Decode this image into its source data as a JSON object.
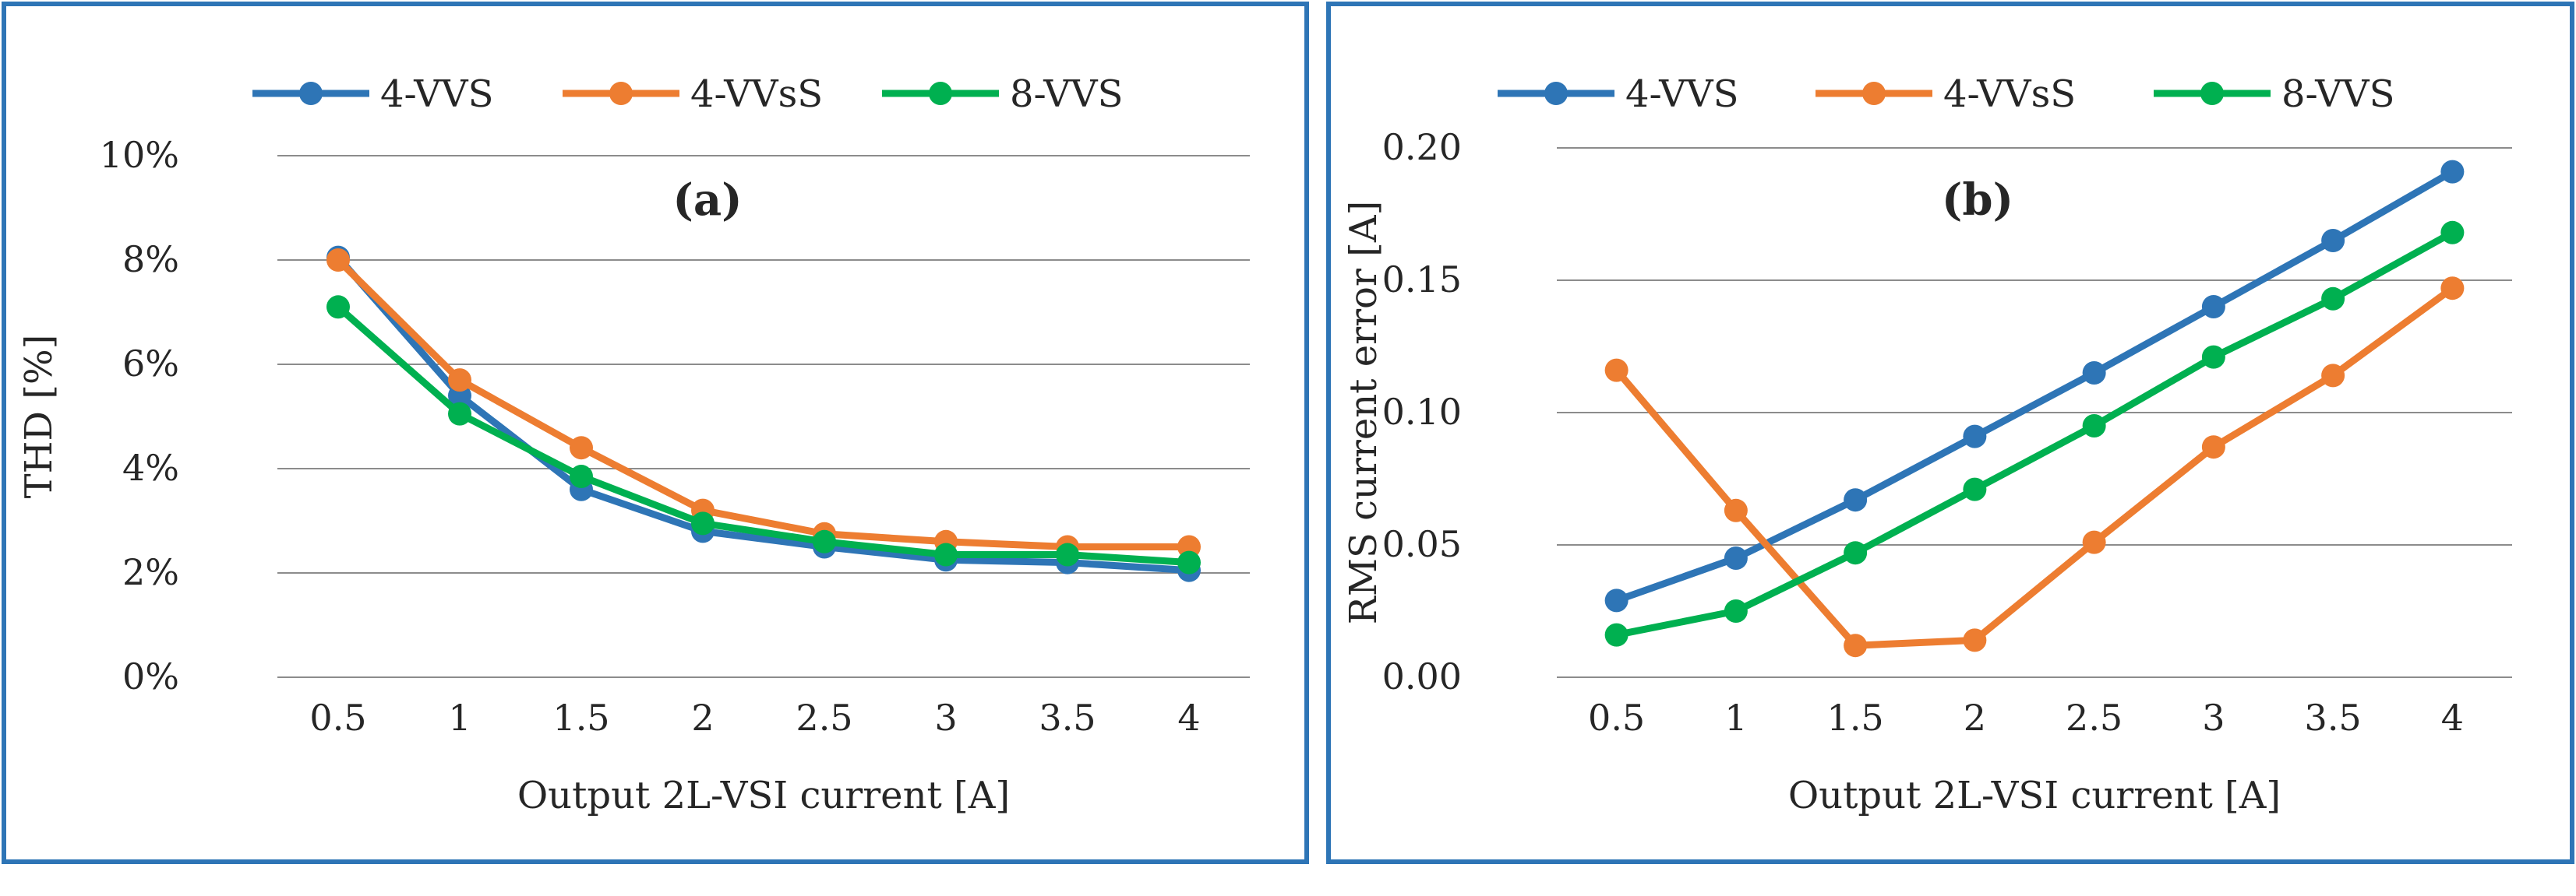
{
  "colors": {
    "series_1": "#2e75b6",
    "series_2": "#ed7d31",
    "series_3": "#00b050",
    "grid": "#8c8c8c",
    "frame": "#2e75b6"
  },
  "chart_data": [
    {
      "type": "line",
      "title": "(a)",
      "xlabel": "Output 2L-VSI current [A]",
      "ylabel": "THD [%]",
      "categories": [
        "0.5",
        "1",
        "1.5",
        "2",
        "2.5",
        "3",
        "3.5",
        "4"
      ],
      "ylim": [
        0,
        10
      ],
      "yticks": [
        0,
        2,
        4,
        6,
        8,
        10
      ],
      "ytick_labels": [
        "0%",
        "2%",
        "4%",
        "6%",
        "8%",
        "10%"
      ],
      "legend_position": "top",
      "series": [
        {
          "name": "4-VVS",
          "values": [
            8.05,
            5.4,
            3.6,
            2.8,
            2.5,
            2.25,
            2.2,
            2.05
          ]
        },
        {
          "name": "4-VVsS",
          "values": [
            8.0,
            5.7,
            4.4,
            3.2,
            2.75,
            2.6,
            2.5,
            2.5
          ]
        },
        {
          "name": "8-VVS",
          "values": [
            7.1,
            5.05,
            3.85,
            2.95,
            2.6,
            2.35,
            2.35,
            2.2
          ]
        }
      ]
    },
    {
      "type": "line",
      "title": "(b)",
      "xlabel": "Output    2L-VSI current [A]",
      "ylabel": "RMS current error [A]",
      "categories": [
        "0.5",
        "1",
        "1.5",
        "2",
        "2.5",
        "3",
        "3.5",
        "4"
      ],
      "ylim": [
        0,
        0.2
      ],
      "yticks": [
        0,
        0.05,
        0.1,
        0.15,
        0.2
      ],
      "ytick_labels": [
        "0.00",
        "0.05",
        "0.10",
        "0.15",
        "0.20"
      ],
      "legend_position": "top",
      "series": [
        {
          "name": "4-VVS",
          "values": [
            0.029,
            0.045,
            0.067,
            0.091,
            0.115,
            0.14,
            0.165,
            0.191
          ]
        },
        {
          "name": "4-VVsS",
          "values": [
            0.116,
            0.063,
            0.012,
            0.014,
            0.051,
            0.087,
            0.114,
            0.147
          ]
        },
        {
          "name": "8-VVS",
          "values": [
            0.016,
            0.025,
            0.047,
            0.071,
            0.095,
            0.121,
            0.143,
            0.168
          ]
        }
      ]
    }
  ]
}
